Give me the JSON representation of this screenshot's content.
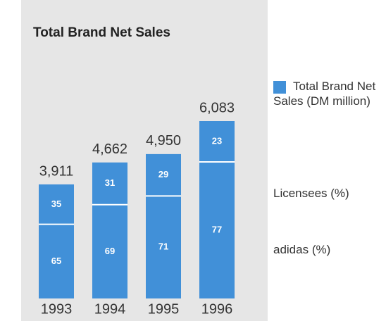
{
  "chart_data": {
    "type": "bar",
    "title": "Total Brand Net Sales",
    "legend_title": "Total Brand Net Sales (DM million)",
    "categories": [
      "1993",
      "1994",
      "1995",
      "1996"
    ],
    "values": [
      3911,
      4662,
      4950,
      6083
    ],
    "value_labels": [
      "3,911",
      "4,662",
      "4,950",
      "6,083"
    ],
    "color": "#4190d8",
    "series": [
      {
        "name": "adidas (%)",
        "color": "#4190d8",
        "values": [
          65,
          69,
          71,
          77
        ]
      },
      {
        "name": "Licensees (%)",
        "color": "#4190d8",
        "values": [
          35,
          31,
          29,
          23
        ]
      }
    ]
  }
}
